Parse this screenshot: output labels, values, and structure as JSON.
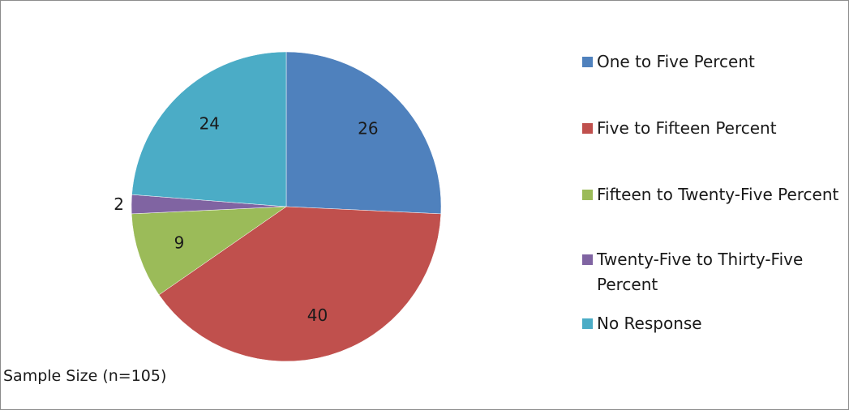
{
  "chart_data": {
    "type": "pie",
    "categories": [
      "One to Five Percent",
      "Five to Fifteen Percent",
      "Fifteen to Twenty-Five Percent",
      "Twenty-Five to Thirty-Five Percent",
      "No Response"
    ],
    "values": [
      26,
      40,
      9,
      2,
      24
    ],
    "colors": [
      "#4f81bd",
      "#c0504d",
      "#9bbb59",
      "#8064a2",
      "#4bacc6"
    ],
    "start_angle_deg": 0,
    "direction": "clockwise",
    "data_labels": [
      "26",
      "40",
      "9",
      "2",
      "24"
    ],
    "legend_position": "right",
    "annotation": "Sample Size (n=105)"
  }
}
